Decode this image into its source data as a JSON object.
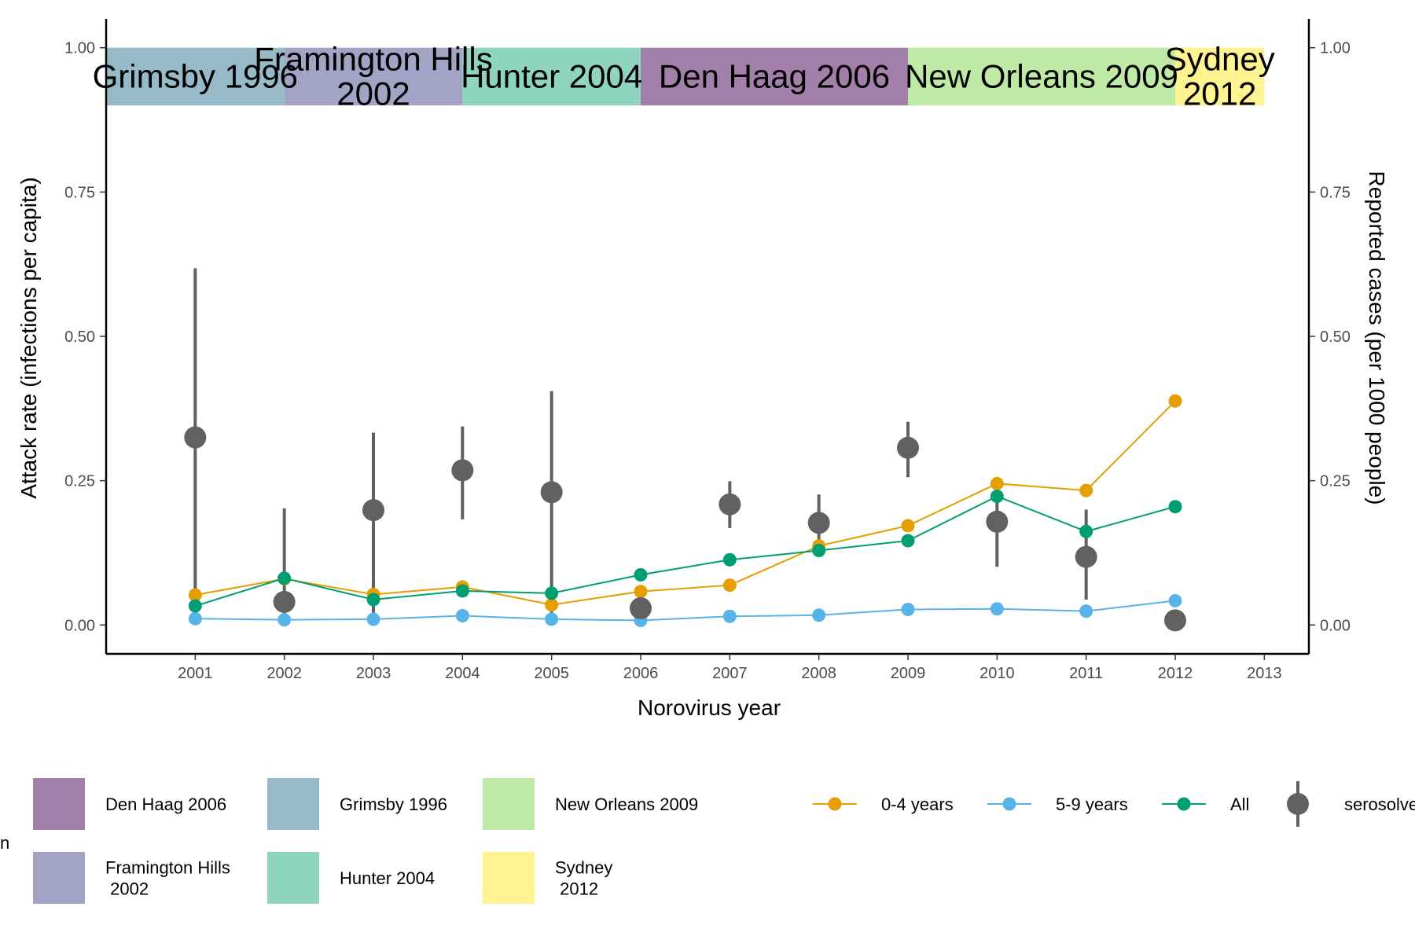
{
  "chart_data": {
    "type": "line",
    "xlabel": "Norovirus year",
    "ylabel": "Attack rate (infections per capita)",
    "y2label": "Reported cases (per 1000 people)",
    "xlim": [
      2000,
      2013.5
    ],
    "x_ticks": [
      2001,
      2002,
      2003,
      2004,
      2005,
      2006,
      2007,
      2008,
      2009,
      2010,
      2011,
      2012,
      2013
    ],
    "x_tick_labels": [
      "2001",
      "2002",
      "2003",
      "2004",
      "2005",
      "2006",
      "2007",
      "2008",
      "2009",
      "2010",
      "2011",
      "2012",
      "2013"
    ],
    "ylim": [
      -0.05,
      1.05
    ],
    "y_ticks": [
      0,
      0.25,
      0.5,
      0.75,
      1.0
    ],
    "y_tick_labels": [
      "0.00",
      "0.25",
      "0.50",
      "0.75",
      "1.00"
    ],
    "y2_ticks": [
      0,
      0.25,
      0.5,
      0.75,
      1.0
    ],
    "y2_tick_labels": [
      "0.00",
      "0.25",
      "0.50",
      "0.75",
      "1.00"
    ],
    "grid": false,
    "eras": [
      {
        "name": "Grimsby 1996",
        "label_lines": [
          "Grimsby 1996"
        ],
        "start": 2000.0,
        "end": 2002.0,
        "color": "#96BAC7"
      },
      {
        "name": "Framington Hills 2002",
        "label_lines": [
          "Framington Hills",
          "2002"
        ],
        "start": 2002.0,
        "end": 2004.0,
        "color": "#A3A3C5"
      },
      {
        "name": "Hunter 2004",
        "label_lines": [
          "Hunter 2004"
        ],
        "start": 2004.0,
        "end": 2006.0,
        "color": "#8FD4BF"
      },
      {
        "name": "Den Haag 2006",
        "label_lines": [
          "Den Haag 2006"
        ],
        "start": 2006.0,
        "end": 2009.0,
        "color": "#A280A9"
      },
      {
        "name": "New Orleans 2009",
        "label_lines": [
          "New Orleans 2009"
        ],
        "start": 2009.0,
        "end": 2012.0,
        "color": "#BFEAA6"
      },
      {
        "name": "Sydney 2012",
        "label_lines": [
          "Sydney",
          "2012"
        ],
        "start": 2012.0,
        "end": 2013.0,
        "color": "#FEF291"
      }
    ],
    "era_band": [
      0.9,
      1.0
    ],
    "series": [
      {
        "name": "0-4 years",
        "color": "#E69F00",
        "x": [
          2001,
          2002,
          2003,
          2004,
          2005,
          2006,
          2007,
          2008,
          2009,
          2010,
          2011,
          2012
        ],
        "values": [
          0.052,
          0.08,
          0.053,
          0.066,
          0.035,
          0.058,
          0.069,
          0.137,
          0.172,
          0.245,
          0.233,
          0.388
        ]
      },
      {
        "name": "5-9 years",
        "color": "#56B4E9",
        "x": [
          2001,
          2002,
          2003,
          2004,
          2005,
          2006,
          2007,
          2008,
          2009,
          2010,
          2011,
          2012
        ],
        "values": [
          0.011,
          0.009,
          0.01,
          0.016,
          0.01,
          0.008,
          0.015,
          0.017,
          0.027,
          0.028,
          0.024,
          0.042
        ]
      },
      {
        "name": "All",
        "color": "#009E73",
        "x": [
          2001,
          2002,
          2003,
          2004,
          2005,
          2006,
          2007,
          2008,
          2009,
          2010,
          2011,
          2012
        ],
        "values": [
          0.033,
          0.081,
          0.044,
          0.059,
          0.055,
          0.087,
          0.113,
          0.129,
          0.146,
          0.223,
          0.162,
          0.205
        ]
      }
    ],
    "serosolver": {
      "name": "serosolver",
      "color": "#616161",
      "x": [
        2001,
        2002,
        2003,
        2004,
        2005,
        2006,
        2007,
        2008,
        2009,
        2010,
        2011,
        2012
      ],
      "values": [
        0.325,
        0.04,
        0.199,
        0.268,
        0.23,
        0.029,
        0.209,
        0.177,
        0.307,
        0.179,
        0.118,
        0.008
      ],
      "lower": [
        0.0,
        0.0,
        0.0,
        0.183,
        0.0,
        0.012,
        0.168,
        0.119,
        0.256,
        0.101,
        0.044,
        0.003
      ],
      "upper": [
        0.618,
        0.202,
        0.333,
        0.344,
        0.405,
        0.046,
        0.249,
        0.226,
        0.352,
        0.229,
        0.2,
        0.015
      ]
    },
    "legend_position": "bottom",
    "era_legend_order": [
      "Den Haag 2006",
      "Framington Hills 2002",
      "Grimsby 1996",
      "Hunter 2004",
      "New Orleans 2009",
      "Sydney 2012"
    ],
    "era_legend_label_lines": [
      [
        "Den Haag 2006"
      ],
      [
        "Framington Hills",
        " 2002"
      ],
      [
        "Grimsby 1996"
      ],
      [
        "Hunter 2004"
      ],
      [
        "New Orleans 2009"
      ],
      [
        "Sydney",
        " 2012"
      ]
    ],
    "era_legend_title_fragment": "n",
    "line_legend_labels": [
      "0-4 years",
      "5-9 years",
      "All",
      "serosolver"
    ]
  }
}
